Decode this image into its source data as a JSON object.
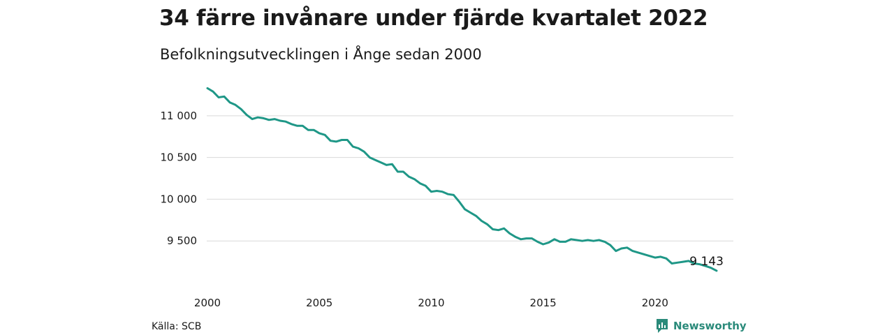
{
  "header": {
    "title": "34 färre invånare under fjärde kvartalet 2022",
    "subtitle": "Befolkningsutvecklingen i Ånge sedan 2000"
  },
  "footer": {
    "source": "Källa: SCB",
    "brand": "Newsworthy",
    "brand_icon": "bar-chart-badge-icon"
  },
  "colors": {
    "line": "#1f9787",
    "grid": "#d9d9d9",
    "brand": "#2a8a7a"
  },
  "chart_data": {
    "type": "line",
    "title": "34 färre invånare under fjärde kvartalet 2022",
    "subtitle": "Befolkningsutvecklingen i Ånge sedan 2000",
    "xlabel": "",
    "ylabel": "",
    "x_ticks": [
      2000,
      2005,
      2010,
      2015,
      2020
    ],
    "x_tick_labels": [
      "2000",
      "2005",
      "2010",
      "2015",
      "2020"
    ],
    "y_ticks": [
      9500,
      10000,
      10500,
      11000
    ],
    "y_tick_labels": [
      "9 500",
      "10 000",
      "10 500",
      "11 000"
    ],
    "xlim": [
      2000,
      2023.5
    ],
    "ylim": [
      9000,
      11400
    ],
    "grid": true,
    "end_label": "9 143",
    "series": [
      {
        "values": [
          [
            2000.0,
            11330
          ],
          [
            2000.25,
            11290
          ],
          [
            2000.5,
            11220
          ],
          [
            2000.75,
            11230
          ],
          [
            2001.0,
            11160
          ],
          [
            2001.25,
            11130
          ],
          [
            2001.5,
            11080
          ],
          [
            2001.75,
            11010
          ],
          [
            2002.0,
            10960
          ],
          [
            2002.25,
            10980
          ],
          [
            2002.5,
            10970
          ],
          [
            2002.75,
            10950
          ],
          [
            2003.0,
            10960
          ],
          [
            2003.25,
            10940
          ],
          [
            2003.5,
            10930
          ],
          [
            2003.75,
            10900
          ],
          [
            2004.0,
            10880
          ],
          [
            2004.25,
            10880
          ],
          [
            2004.5,
            10830
          ],
          [
            2004.75,
            10830
          ],
          [
            2005.0,
            10790
          ],
          [
            2005.25,
            10770
          ],
          [
            2005.5,
            10700
          ],
          [
            2005.75,
            10690
          ],
          [
            2006.0,
            10710
          ],
          [
            2006.25,
            10710
          ],
          [
            2006.5,
            10630
          ],
          [
            2006.75,
            10610
          ],
          [
            2007.0,
            10570
          ],
          [
            2007.25,
            10500
          ],
          [
            2007.5,
            10470
          ],
          [
            2007.75,
            10440
          ],
          [
            2008.0,
            10410
          ],
          [
            2008.25,
            10420
          ],
          [
            2008.5,
            10330
          ],
          [
            2008.75,
            10330
          ],
          [
            2009.0,
            10270
          ],
          [
            2009.25,
            10240
          ],
          [
            2009.5,
            10190
          ],
          [
            2009.75,
            10160
          ],
          [
            2010.0,
            10090
          ],
          [
            2010.25,
            10100
          ],
          [
            2010.5,
            10090
          ],
          [
            2010.75,
            10060
          ],
          [
            2011.0,
            10050
          ],
          [
            2011.25,
            9970
          ],
          [
            2011.5,
            9880
          ],
          [
            2011.75,
            9840
          ],
          [
            2012.0,
            9800
          ],
          [
            2012.25,
            9740
          ],
          [
            2012.5,
            9700
          ],
          [
            2012.75,
            9640
          ],
          [
            2013.0,
            9630
          ],
          [
            2013.25,
            9650
          ],
          [
            2013.5,
            9590
          ],
          [
            2013.75,
            9550
          ],
          [
            2014.0,
            9520
          ],
          [
            2014.25,
            9530
          ],
          [
            2014.5,
            9530
          ],
          [
            2014.75,
            9490
          ],
          [
            2015.0,
            9460
          ],
          [
            2015.25,
            9480
          ],
          [
            2015.5,
            9520
          ],
          [
            2015.75,
            9490
          ],
          [
            2016.0,
            9490
          ],
          [
            2016.25,
            9520
          ],
          [
            2016.5,
            9510
          ],
          [
            2016.75,
            9500
          ],
          [
            2017.0,
            9510
          ],
          [
            2017.25,
            9500
          ],
          [
            2017.5,
            9510
          ],
          [
            2017.75,
            9490
          ],
          [
            2018.0,
            9450
          ],
          [
            2018.25,
            9380
          ],
          [
            2018.5,
            9410
          ],
          [
            2018.75,
            9420
          ],
          [
            2019.0,
            9380
          ],
          [
            2019.25,
            9360
          ],
          [
            2019.5,
            9340
          ],
          [
            2019.75,
            9320
          ],
          [
            2020.0,
            9300
          ],
          [
            2020.25,
            9310
          ],
          [
            2020.5,
            9290
          ],
          [
            2020.75,
            9230
          ],
          [
            2021.0,
            9240
          ],
          [
            2021.25,
            9250
          ],
          [
            2021.5,
            9260
          ],
          [
            2021.75,
            9230
          ],
          [
            2022.0,
            9220
          ],
          [
            2022.25,
            9200
          ],
          [
            2022.5,
            9177
          ],
          [
            2022.75,
            9143
          ]
        ]
      }
    ]
  }
}
